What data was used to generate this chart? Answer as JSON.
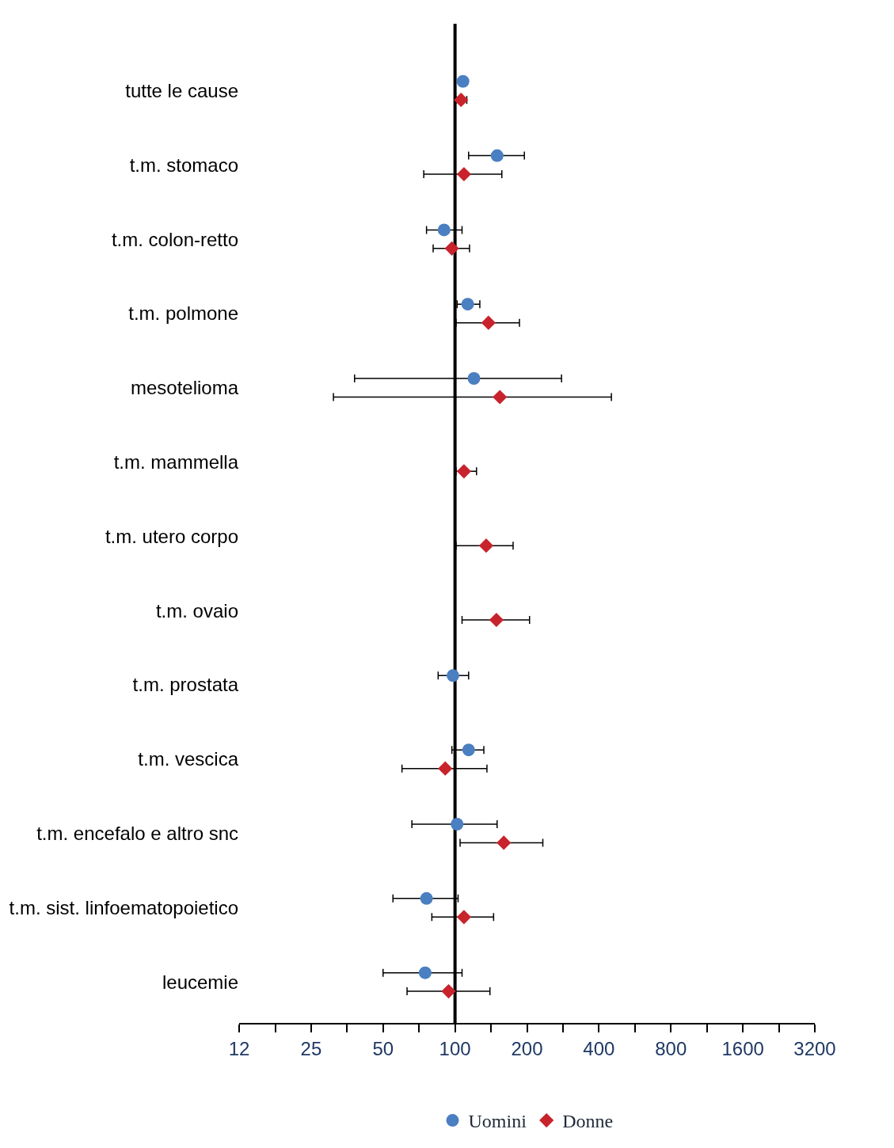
{
  "chart_data": {
    "type": "scatter",
    "categories": [
      "tutte le cause",
      "t.m. stomaco",
      "t.m. colon-retto",
      "t.m. polmone",
      "mesotelioma",
      "t.m. mammella",
      "t.m. utero corpo",
      "t.m. ovaio",
      "t.m. prostata",
      "t.m. vescica",
      "t.m. encefalo e altro snc",
      "t.m. sist. linfoematopoietico",
      "leucemie"
    ],
    "orientation": "horizontal",
    "series": [
      {
        "name": "Uomini",
        "color": "#4a7fc1",
        "marker": "circle",
        "values": [
          108,
          150,
          90,
          113,
          120,
          null,
          null,
          null,
          98,
          114,
          102,
          76,
          75
        ],
        "errors": [
          null,
          [
            114,
            195
          ],
          [
            76,
            107
          ],
          [
            102,
            127
          ],
          [
            38,
            279
          ],
          null,
          null,
          null,
          [
            85,
            114
          ],
          [
            97,
            132
          ],
          [
            66,
            150
          ],
          [
            55,
            103
          ],
          [
            50,
            107
          ]
        ]
      },
      {
        "name": "Donne",
        "color": "#c8232c",
        "marker": "diamond",
        "values": [
          106,
          109,
          97,
          138,
          154,
          109,
          135,
          149,
          null,
          91,
          160,
          109,
          94
        ],
        "errors": [
          [
            101,
            112
          ],
          [
            74,
            157
          ],
          [
            81,
            115
          ],
          [
            101,
            186
          ],
          [
            31,
            451
          ],
          [
            101,
            123
          ],
          [
            101,
            175
          ],
          [
            107,
            205
          ],
          null,
          [
            60,
            136
          ],
          [
            105,
            233
          ],
          [
            80,
            145
          ],
          [
            63,
            140
          ]
        ]
      }
    ],
    "log": "x",
    "xlim": [
      12.5,
      3200
    ],
    "xticks": [
      {
        "value": 12.5,
        "label": "12"
      },
      {
        "value": 17.7,
        "label": null
      },
      25,
      {
        "value": 35.4,
        "label": null
      },
      50,
      {
        "value": 70.7,
        "label": null
      },
      100,
      {
        "value": 141,
        "label": null
      },
      200,
      {
        "value": 283,
        "label": null
      },
      400,
      {
        "value": 566,
        "label": null
      },
      800,
      {
        "value": 1131,
        "label": null
      },
      1600,
      {
        "value": 2263,
        "label": null
      },
      3200
    ],
    "ref_lines": [
      {
        "axis": "x",
        "value": 100,
        "color": "#000000"
      }
    ],
    "grid": false,
    "legend": "bottom"
  }
}
